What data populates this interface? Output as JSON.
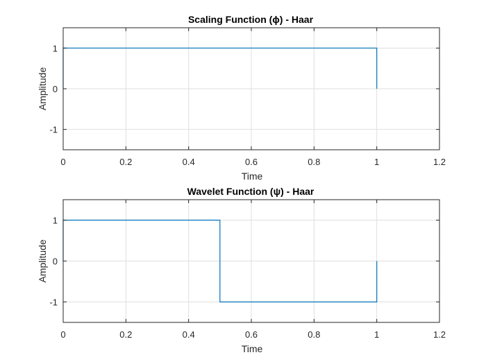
{
  "chart_data": [
    {
      "type": "line",
      "title": "Scaling Function (ϕ) - Haar",
      "xlabel": "Time",
      "ylabel": "Amplitude",
      "xlim": [
        0,
        1.2
      ],
      "ylim": [
        -1.5,
        1.5
      ],
      "xticks": [
        0,
        0.2,
        0.4,
        0.6,
        0.8,
        1,
        1.2
      ],
      "xtick_labels": [
        "0",
        "0.2",
        "0.4",
        "0.6",
        "0.8",
        "1",
        "1.2"
      ],
      "yticks": [
        -1,
        0,
        1
      ],
      "ytick_labels": [
        "-1",
        "0",
        "1"
      ],
      "grid": true,
      "line_color": "#0072bd",
      "series": [
        {
          "x": [
            0,
            0,
            1,
            1
          ],
          "y": [
            0,
            1,
            1,
            0
          ]
        }
      ]
    },
    {
      "type": "line",
      "title": "Wavelet Function (ψ) - Haar",
      "xlabel": "Time",
      "ylabel": "Amplitude",
      "xlim": [
        0,
        1.2
      ],
      "ylim": [
        -1.5,
        1.5
      ],
      "xticks": [
        0,
        0.2,
        0.4,
        0.6,
        0.8,
        1,
        1.2
      ],
      "xtick_labels": [
        "0",
        "0.2",
        "0.4",
        "0.6",
        "0.8",
        "1",
        "1.2"
      ],
      "yticks": [
        -1,
        0,
        1
      ],
      "ytick_labels": [
        "-1",
        "0",
        "1"
      ],
      "grid": true,
      "line_color": "#0072bd",
      "series": [
        {
          "x": [
            0,
            0,
            0.5,
            0.5,
            1,
            1
          ],
          "y": [
            0,
            1,
            1,
            -1,
            -1,
            0
          ]
        }
      ]
    }
  ]
}
